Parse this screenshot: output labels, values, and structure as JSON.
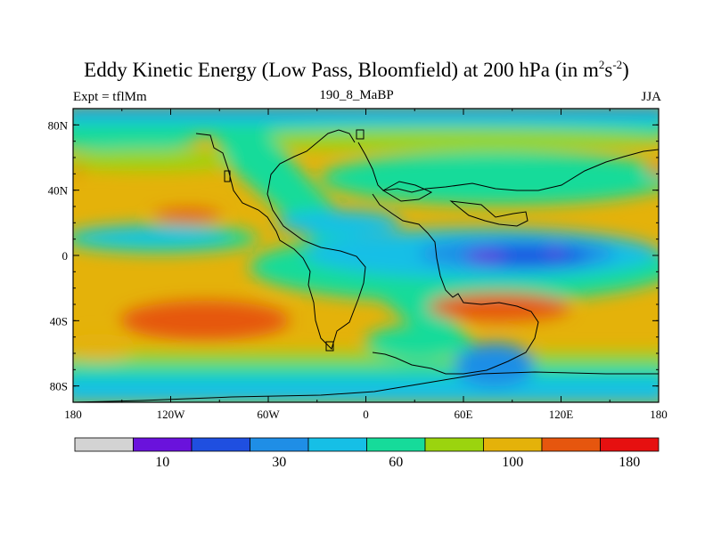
{
  "title": {
    "main": "Eddy Kinetic Energy (Low Pass, Bloomfield) at 200 hPa (in m",
    "exp1": "2",
    "mid": "s",
    "exp2": "-2",
    "close": ")"
  },
  "subtitle": {
    "left": "Expt = tflMm",
    "center": "190_8_MaBP",
    "right": "JJA"
  },
  "map": {
    "lon_range": [
      -180,
      180
    ],
    "lat_range": [
      -90,
      90
    ],
    "y_tick_labels": [
      "80N",
      "40N",
      "0",
      "40S",
      "80S"
    ],
    "x_tick_labels": [
      "180",
      "120W",
      "60W",
      "0",
      "60E",
      "120E",
      "180"
    ]
  },
  "colorbar": {
    "colors": [
      "#d3d3d3",
      "#6a12dc",
      "#1f4fe0",
      "#1f8ee6",
      "#16bfe6",
      "#16db9a",
      "#9bd40e",
      "#e4b20a",
      "#e6560e",
      "#e61010"
    ],
    "labels": [
      {
        "text": "10",
        "boundary": 2
      },
      {
        "text": "30",
        "boundary": 4
      },
      {
        "text": "60",
        "boundary": 6
      },
      {
        "text": "100",
        "boundary": 8
      },
      {
        "text": "180",
        "boundary": 10
      }
    ]
  }
}
